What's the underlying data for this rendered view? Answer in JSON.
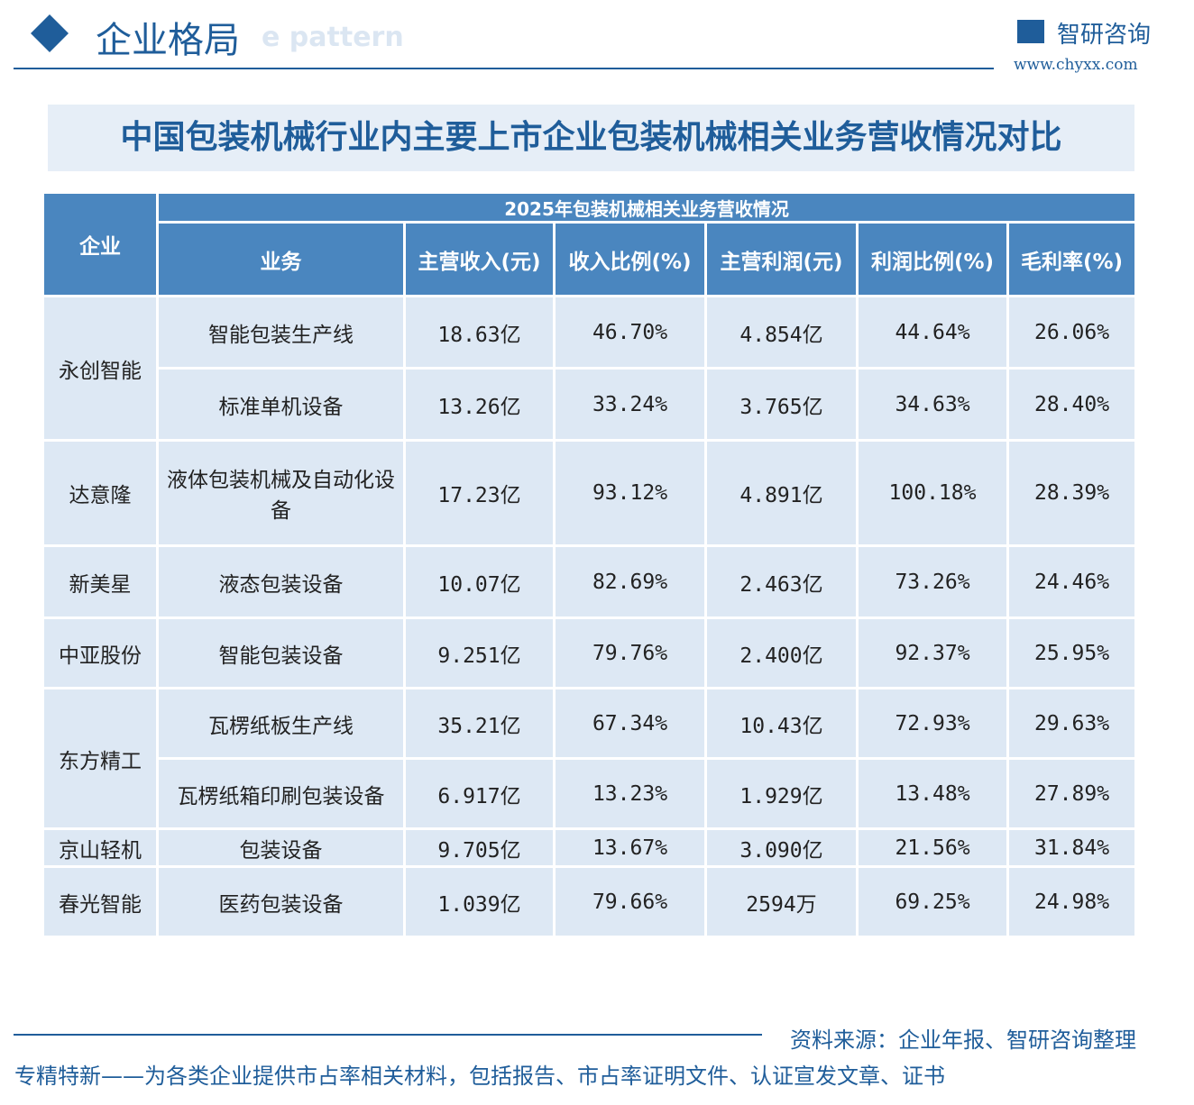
{
  "header": {
    "title": "企业格局",
    "subtitle": "e pattern",
    "logo": "智研咨询",
    "url": "www.chyxx.com"
  },
  "table": {
    "title": "中国包装机械行业内主要上市企业包装机械相关业务营收情况对比",
    "company_header": "企业",
    "group_header": "2025年包装机械相关业务营收情况",
    "columns": [
      "业务",
      "主营收入(元)",
      "收入比例(%)",
      "主营利润(元)",
      "利润比例(%)",
      "毛利率(%)"
    ],
    "groups": [
      {
        "name": "永创智能",
        "rows": [
          [
            "智能包装生产线",
            "18.63亿",
            "46.70%",
            "4.854亿",
            "44.64%",
            "26.06%"
          ],
          [
            "标准单机设备",
            "13.26亿",
            "33.24%",
            "3.765亿",
            "34.63%",
            "28.40%"
          ]
        ]
      },
      {
        "name": "达意隆",
        "rows": [
          [
            "液体包装机械及自动化设备",
            "17.23亿",
            "93.12%",
            "4.891亿",
            "100.18%",
            "28.39%"
          ]
        ]
      },
      {
        "name": "新美星",
        "rows": [
          [
            "液态包装设备",
            "10.07亿",
            "82.69%",
            "2.463亿",
            "73.26%",
            "24.46%"
          ]
        ]
      },
      {
        "name": "中亚股份",
        "rows": [
          [
            "智能包装设备",
            "9.251亿",
            "79.76%",
            "2.400亿",
            "92.37%",
            "25.95%"
          ]
        ]
      },
      {
        "name": "东方精工",
        "rows": [
          [
            "瓦楞纸板生产线",
            "35.21亿",
            "67.34%",
            "10.43亿",
            "72.93%",
            "29.63%"
          ],
          [
            "瓦楞纸箱印刷包装设备",
            "6.917亿",
            "13.23%",
            "1.929亿",
            "13.48%",
            "27.89%"
          ]
        ]
      },
      {
        "name": "京山轻机",
        "rows": [
          [
            "包装设备",
            "9.705亿",
            "13.67%",
            "3.090亿",
            "21.56%",
            "31.84%"
          ]
        ]
      },
      {
        "name": "春光智能",
        "rows": [
          [
            "医药包装设备",
            "1.039亿",
            "79.66%",
            "2594万",
            "69.25%",
            "24.98%"
          ]
        ],
        "rows2": null
      }
    ]
  },
  "footer": {
    "source": "资料来源：企业年报、智研咨询整理",
    "tagline": "专精特新——为各类企业提供市占率相关材料，包括报告、市占率证明文件、认证宣发文章、证书"
  }
}
